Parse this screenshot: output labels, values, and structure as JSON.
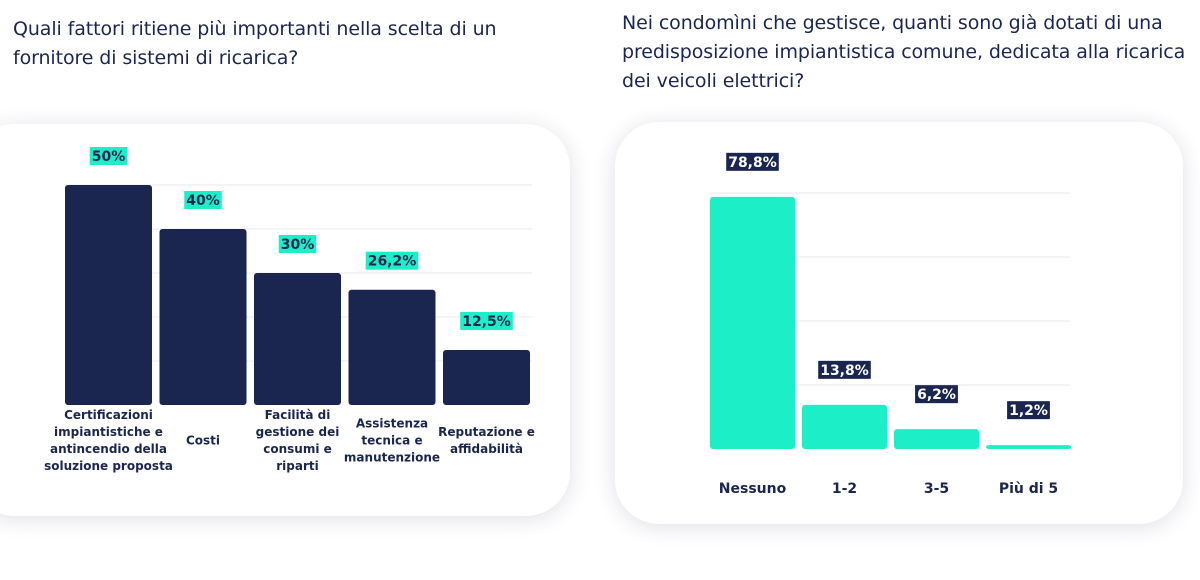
{
  "colors": {
    "navy": "#1b2650",
    "aqua": "#1cefc8"
  },
  "left": {
    "question": "Quali fattori ritiene più importanti nella scelta di un fornitore di sistemi di ricarica?",
    "chart_data": {
      "type": "bar",
      "title": "Quali fattori ritiene più importanti nella scelta di un fornitore di sistemi di ricarica?",
      "categories": [
        "Certificazioni impiantistiche e antincendio della soluzione proposta",
        "Costi",
        "Facilità di gestione dei consumi e riparti",
        "Assistenza tecnica e manutenzione",
        "Reputazione e affidabilità"
      ],
      "category_lines": [
        [
          "Certificazioni",
          "impiantistiche e",
          "antincendio della",
          "soluzione proposta"
        ],
        [
          "Costi"
        ],
        [
          "Facilità di",
          "gestione dei",
          "consumi e",
          "riparti"
        ],
        [
          "Assistenza",
          "tecnica e",
          "manutenzione"
        ],
        [
          "Reputazione e",
          "affidabilità"
        ]
      ],
      "values": [
        50,
        40,
        30,
        26.2,
        12.5
      ],
      "value_labels": [
        "50%",
        "40%",
        "30%",
        "26,2%",
        "12,5%"
      ],
      "xlabel": "",
      "ylabel": "",
      "ylim": [
        0,
        50
      ],
      "grid": true
    }
  },
  "right": {
    "question": "Nei condomìni che gestisce, quanti sono già dotati di una predisposizione impiantistica comune, dedicata alla ricarica dei veicoli elettrici?",
    "chart_data": {
      "type": "bar",
      "title": "Nei condomìni che gestisce, quanti sono già dotati di una predisposizione impiantistica comune, dedicata alla ricarica dei veicoli elettrici?",
      "categories": [
        "Nessuno",
        "1-2",
        "3-5",
        "Più di 5"
      ],
      "values": [
        78.8,
        13.8,
        6.2,
        1.2
      ],
      "value_labels": [
        "78,8%",
        "13,8%",
        "6,2%",
        "1,2%"
      ],
      "xlabel": "",
      "ylabel": "",
      "ylim": [
        0,
        80
      ],
      "grid": true
    }
  }
}
